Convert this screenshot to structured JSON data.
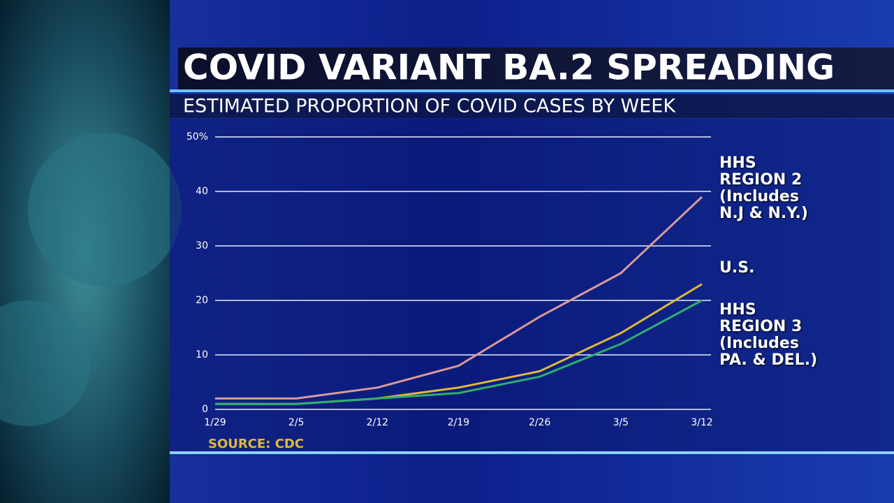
{
  "chart_data": {
    "type": "line",
    "title": "COVID VARIANT BA.2 SPREADING",
    "subtitle": "ESTIMATED PROPORTION OF COVID CASES BY WEEK",
    "source": "SOURCE: CDC",
    "categories": [
      "1/29",
      "2/5",
      "2/12",
      "2/19",
      "2/26",
      "3/5",
      "3/12"
    ],
    "series": [
      {
        "name": "HHS\nREGION 2\n(Includes\n N.J & N.Y.)",
        "color": "#d99a9a",
        "values": [
          2,
          2,
          4,
          8,
          17,
          25,
          39
        ]
      },
      {
        "name": "U.S.",
        "color": "#e0b83a",
        "values": [
          1,
          1,
          2,
          4,
          7,
          14,
          23
        ]
      },
      {
        "name": "HHS\nREGION 3\n(Includes\n PA. & DEL.)",
        "color": "#2fae6e",
        "values": [
          1,
          1,
          2,
          3,
          6,
          12,
          20
        ]
      }
    ],
    "ylim": [
      0,
      50
    ],
    "yticks": [
      0,
      10,
      20,
      30,
      40,
      {
        "value": 50,
        "label": "50%"
      }
    ],
    "grid": true
  }
}
